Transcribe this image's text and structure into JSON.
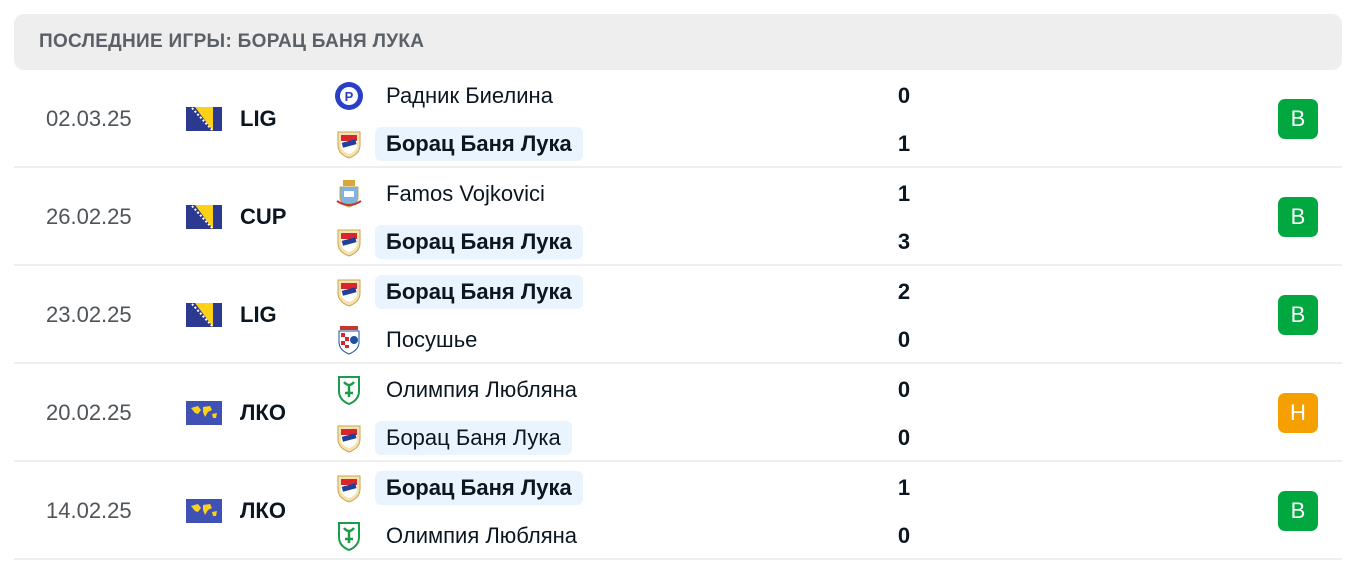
{
  "header": {
    "title": "ПОСЛЕДНИЕ ИГРЫ: БОРАЦ БАНЯ ЛУКА"
  },
  "colors": {
    "win": "#00a83f",
    "draw": "#f5a000",
    "highlight": "#eaf4ff"
  },
  "matches": [
    {
      "date": "02.03.25",
      "flag": "bosnia-flag",
      "competition": "LIG",
      "home": {
        "name": "Радник Биелина",
        "score": "0",
        "highlight": false,
        "bold": false,
        "logo": "radnik-logo"
      },
      "away": {
        "name": "Борац Баня Лука",
        "score": "1",
        "highlight": true,
        "bold": true,
        "logo": "borac-logo"
      },
      "result": "В",
      "result_color": "#00a83f"
    },
    {
      "date": "26.02.25",
      "flag": "bosnia-flag",
      "competition": "CUP",
      "home": {
        "name": "Famos Vojkovici",
        "score": "1",
        "highlight": false,
        "bold": false,
        "logo": "famos-logo"
      },
      "away": {
        "name": "Борац Баня Лука",
        "score": "3",
        "highlight": true,
        "bold": true,
        "logo": "borac-logo"
      },
      "result": "В",
      "result_color": "#00a83f"
    },
    {
      "date": "23.02.25",
      "flag": "bosnia-flag",
      "competition": "LIG",
      "home": {
        "name": "Борац Баня Лука",
        "score": "2",
        "highlight": true,
        "bold": true,
        "logo": "borac-logo"
      },
      "away": {
        "name": "Посушье",
        "score": "0",
        "highlight": false,
        "bold": false,
        "logo": "posusje-logo"
      },
      "result": "В",
      "result_color": "#00a83f"
    },
    {
      "date": "20.02.25",
      "flag": "world-flag",
      "competition": "ЛКО",
      "home": {
        "name": "Олимпия Любляна",
        "score": "0",
        "highlight": false,
        "bold": false,
        "logo": "olimpija-logo"
      },
      "away": {
        "name": "Борац Баня Лука",
        "score": "0",
        "highlight": true,
        "bold": false,
        "logo": "borac-logo"
      },
      "result": "Н",
      "result_color": "#f5a000"
    },
    {
      "date": "14.02.25",
      "flag": "world-flag",
      "competition": "ЛКО",
      "home": {
        "name": "Борац Баня Лука",
        "score": "1",
        "highlight": true,
        "bold": true,
        "logo": "borac-logo"
      },
      "away": {
        "name": "Олимпия Любляна",
        "score": "0",
        "highlight": false,
        "bold": false,
        "logo": "olimpija-logo"
      },
      "result": "В",
      "result_color": "#00a83f"
    }
  ]
}
